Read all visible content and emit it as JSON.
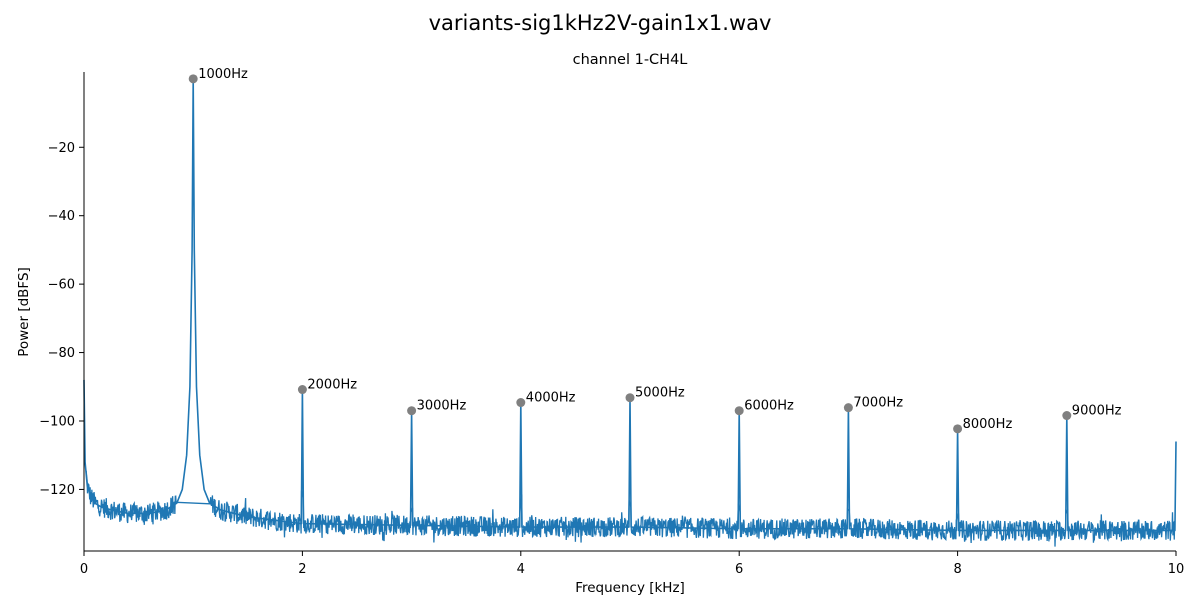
{
  "chart_data": {
    "type": "line",
    "suptitle": "variants-sig1kHz2V-gain1x1.wav",
    "title": "channel 1-CH4L",
    "xlabel": "Frequency [kHz]",
    "ylabel": "Power [dBFS]",
    "xlim": [
      0,
      10
    ],
    "ylim": [
      -138,
      2
    ],
    "xticks": [
      0,
      2,
      4,
      6,
      8,
      10
    ],
    "xtick_labels": [
      "0",
      "2",
      "4",
      "6",
      "8",
      "10"
    ],
    "yticks": [
      -20,
      -40,
      -60,
      -80,
      -100,
      -120
    ],
    "ytick_labels": [
      "−20",
      "−40",
      "−60",
      "−80",
      "−100",
      "−120"
    ],
    "grid": false,
    "colors": {
      "line": "#1f77b4",
      "marker": "#808080"
    },
    "peaks": [
      {
        "x": 1,
        "y": 0.0,
        "label": "1000Hz"
      },
      {
        "x": 2,
        "y": -90.8,
        "label": "2000Hz"
      },
      {
        "x": 3,
        "y": -97.0,
        "label": "3000Hz"
      },
      {
        "x": 4,
        "y": -94.6,
        "label": "4000Hz"
      },
      {
        "x": 5,
        "y": -93.2,
        "label": "5000Hz"
      },
      {
        "x": 6,
        "y": -97.0,
        "label": "6000Hz"
      },
      {
        "x": 7,
        "y": -96.1,
        "label": "7000Hz"
      },
      {
        "x": 8,
        "y": -102.3,
        "label": "8000Hz"
      },
      {
        "x": 9,
        "y": -98.4,
        "label": "9000Hz"
      }
    ],
    "series": [
      {
        "values": [
          [
            0.0,
            -88
          ],
          [
            0.01,
            -112
          ],
          [
            0.03,
            -119
          ],
          [
            0.06,
            -122
          ],
          [
            0.1,
            -124
          ],
          [
            0.15,
            -125
          ],
          [
            0.25,
            -126
          ],
          [
            0.4,
            -127
          ],
          [
            0.6,
            -127
          ],
          [
            0.75,
            -126
          ],
          [
            0.85,
            -124
          ],
          [
            0.9,
            -120
          ],
          [
            0.94,
            -110
          ],
          [
            0.97,
            -90
          ],
          [
            0.99,
            -50
          ],
          [
            1.0,
            0
          ],
          [
            1.01,
            -50
          ],
          [
            1.03,
            -90
          ],
          [
            1.06,
            -110
          ],
          [
            1.1,
            -120
          ],
          [
            1.15,
            -124
          ],
          [
            1.25,
            -126
          ],
          [
            1.5,
            -128
          ],
          [
            1.99,
            -130
          ],
          [
            2.0,
            -90.8
          ],
          [
            2.01,
            -130
          ],
          [
            2.99,
            -130.5
          ],
          [
            3.0,
            -97.0
          ],
          [
            3.01,
            -130.5
          ],
          [
            3.99,
            -131
          ],
          [
            4.0,
            -94.6
          ],
          [
            4.01,
            -131
          ],
          [
            4.99,
            -131
          ],
          [
            5.0,
            -93.2
          ],
          [
            5.01,
            -131
          ],
          [
            5.99,
            -131.5
          ],
          [
            6.0,
            -97.0
          ],
          [
            6.01,
            -131.5
          ],
          [
            6.99,
            -131.5
          ],
          [
            7.0,
            -96.1
          ],
          [
            7.01,
            -131.5
          ],
          [
            7.99,
            -132
          ],
          [
            8.0,
            -102.3
          ],
          [
            8.01,
            -132
          ],
          [
            8.99,
            -132
          ],
          [
            9.0,
            -98.4
          ],
          [
            9.01,
            -132
          ],
          [
            9.99,
            -132
          ],
          [
            10.0,
            -106
          ]
        ]
      }
    ]
  }
}
